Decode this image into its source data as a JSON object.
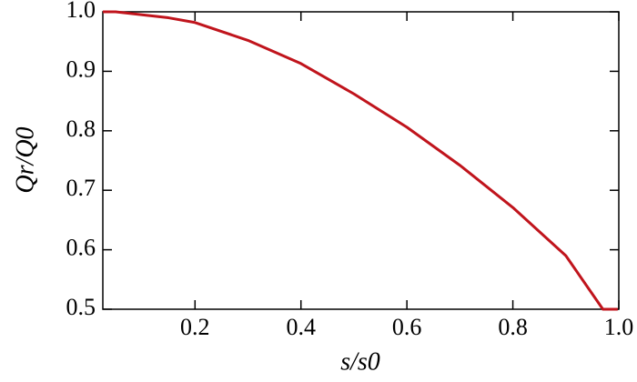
{
  "chart_data": {
    "type": "line",
    "xlabel": "s/s0",
    "ylabel": "Qr/Q0",
    "x": [
      0.026,
      0.05,
      0.1,
      0.15,
      0.2,
      0.3,
      0.4,
      0.5,
      0.6,
      0.7,
      0.8,
      0.9,
      0.97,
      0.998
    ],
    "series": [
      {
        "color": "#c0141c",
        "values": [
          1.0,
          1.0,
          0.995,
          0.99,
          0.982,
          0.952,
          0.913,
          0.862,
          0.806,
          0.742,
          0.671,
          0.59,
          0.5,
          0.5
        ]
      }
    ],
    "xlim": [
      0.026,
      1.0
    ],
    "ylim": [
      0.5,
      1.0
    ],
    "xticks": [
      0.2,
      0.4,
      0.6,
      {
        "value": 1,
        "label": "1.0"
      },
      0.8
    ],
    "yticks": [
      0.5,
      0.6,
      0.7,
      0.8,
      0.9,
      {
        "value": 1,
        "label": "1.0"
      }
    ],
    "grid": false
  }
}
